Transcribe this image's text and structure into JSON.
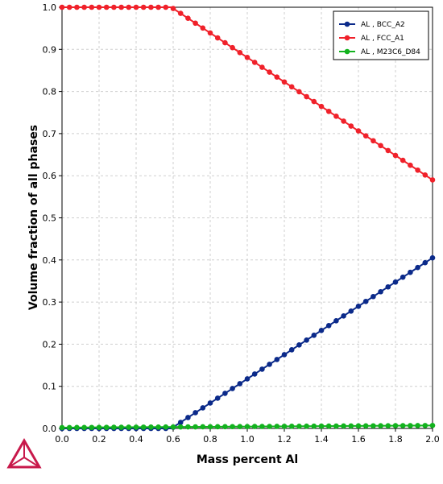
{
  "chart_data": {
    "type": "line",
    "xlabel": "Mass percent Al",
    "ylabel": "Volume fraction of all phases",
    "xlim": [
      0,
      2
    ],
    "ylim": [
      0,
      1
    ],
    "xticks": [
      0.0,
      0.2,
      0.4,
      0.6,
      0.8,
      1.0,
      1.2,
      1.4,
      1.6,
      1.8,
      2.0
    ],
    "xtick_labels": [
      "0.0",
      "0.2",
      "0.4",
      "0.6",
      "0.8",
      "1.0",
      "1.2",
      "1.4",
      "1.6",
      "1.8",
      "2.0"
    ],
    "yticks": [
      0.0,
      0.1,
      0.2,
      0.3,
      0.4,
      0.5,
      0.6,
      0.7,
      0.8,
      0.9,
      1.0
    ],
    "ytick_labels": [
      "0.0",
      "0.1",
      "0.2",
      "0.3",
      "0.4",
      "0.5",
      "0.6",
      "0.7",
      "0.8",
      "0.9",
      "1.0"
    ],
    "grid": true,
    "legend_position": "top-right",
    "series": [
      {
        "name": "AL , BCC_A2",
        "color": "#0b2a8a",
        "points": [
          [
            0.0,
            0.0
          ],
          [
            0.59,
            0.0
          ],
          [
            2.0,
            0.405
          ]
        ]
      },
      {
        "name": "AL , FCC_A1",
        "color": "#f0212a",
        "points": [
          [
            0.0,
            1.0
          ],
          [
            0.59,
            1.0
          ],
          [
            2.0,
            0.59
          ]
        ]
      },
      {
        "name": "AL , M23C6_D84",
        "color": "#12b21e",
        "points": [
          [
            0.0,
            0.002
          ],
          [
            2.0,
            0.007
          ]
        ]
      }
    ],
    "sample_step": 0.04
  },
  "logo": {
    "icon": "thermo-calc-triangle-icon",
    "color": "#c8194b"
  }
}
